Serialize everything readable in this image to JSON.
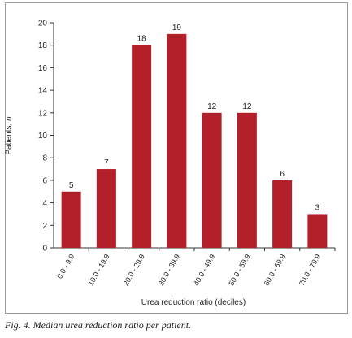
{
  "chart_data": {
    "type": "bar",
    "categories": [
      "0.0 - 9.9",
      "10.0 - 19.9",
      "20.0 - 29.9",
      "30.0 - 39.9",
      "40.0 - 49.9",
      "50.0 - 59.9",
      "60.0 - 69.9",
      "70.0 - 79.9"
    ],
    "values": [
      5,
      7,
      18,
      19,
      12,
      12,
      6,
      3
    ],
    "xlabel": "Urea reduction ratio (deciles)",
    "ylabel_prefix": "Patients, ",
    "ylabel_var": "n",
    "ylim": [
      0,
      20
    ],
    "yticks": [
      0,
      2,
      4,
      6,
      8,
      10,
      12,
      14,
      16,
      18,
      20
    ],
    "bar_color": "#b4202a",
    "grid": false,
    "data_labels": true
  },
  "caption": "Fig. 4. Median urea reduction ratio per patient."
}
